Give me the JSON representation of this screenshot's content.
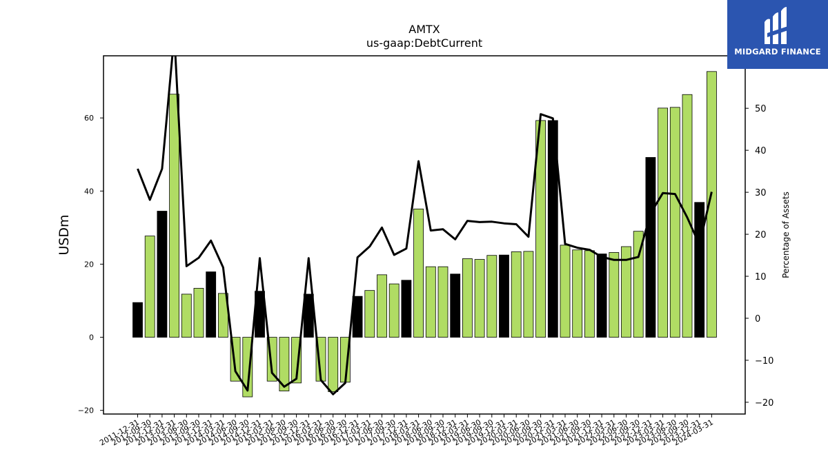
{
  "chart_data": {
    "type": "bar",
    "title": "AMTX",
    "subtitle": "us-gaap:DebtCurrent",
    "ylabel": "USDm",
    "y2label": "Percentage of Assets",
    "ylim": [
      -21,
      77
    ],
    "y2lim": [
      -22.8,
      62.5
    ],
    "yticks": [
      -20,
      0,
      20,
      40,
      60
    ],
    "y2ticks": [
      -20,
      -10,
      0,
      10,
      20,
      30,
      40,
      50
    ],
    "colors": {
      "bar_default": "#b0dc64",
      "bar_highlight": "#000000",
      "line": "#000000"
    },
    "categories": [
      "2011-12-31",
      "2012-09-30",
      "2012-12-31",
      "2013-03-31",
      "2013-06-30",
      "2013-09-30",
      "2013-12-31",
      "2014-03-31",
      "2014-06-30",
      "2014-09-30",
      "2014-12-31",
      "2015-03-31",
      "2015-06-30",
      "2015-09-30",
      "2015-12-31",
      "2016-03-31",
      "2016-06-30",
      "2016-09-30",
      "2016-12-31",
      "2017-03-31",
      "2017-06-30",
      "2017-09-30",
      "2017-12-31",
      "2018-03-31",
      "2018-06-30",
      "2018-09-30",
      "2018-12-31",
      "2019-03-31",
      "2019-06-30",
      "2019-09-30",
      "2019-12-31",
      "2020-03-31",
      "2020-06-30",
      "2020-09-30",
      "2020-12-31",
      "2021-03-31",
      "2021-06-30",
      "2021-09-30",
      "2021-12-31",
      "2022-03-31",
      "2022-06-30",
      "2022-09-30",
      "2022-12-31",
      "2023-03-31",
      "2023-06-30",
      "2023-09-30",
      "2023-12-31",
      "2024-03-31"
    ],
    "series": [
      {
        "values": [
          9.5,
          27.7,
          34.5,
          66.5,
          11.8,
          13.4,
          17.9,
          12.0,
          -12.0,
          -16.3,
          12.6,
          -12.0,
          -14.7,
          -12.5,
          11.8,
          -12.0,
          -14.9,
          -12.3,
          11.2,
          12.8,
          17.1,
          14.6,
          15.6,
          35.1,
          19.3,
          19.3,
          17.3,
          21.5,
          21.3,
          22.4,
          22.5,
          23.4,
          23.5,
          59.3,
          59.3,
          25.2,
          23.9,
          23.7,
          22.8,
          23.2,
          24.8,
          29.0,
          49.2,
          62.7,
          62.9,
          66.4,
          36.9,
          72.7
        ]
      },
      {
        "values": [
          35.6,
          28.2,
          35.6,
          67.5,
          12.4,
          14.4,
          18.5,
          12.1,
          -12.6,
          -17.2,
          14.3,
          -13.0,
          -16.3,
          -14.4,
          14.3,
          -14.7,
          -18.1,
          -15.4,
          14.5,
          17.1,
          21.6,
          15.1,
          16.6,
          37.4,
          20.9,
          21.2,
          18.8,
          23.2,
          22.9,
          23.0,
          22.6,
          22.4,
          19.4,
          48.6,
          47.6,
          17.7,
          16.8,
          16.3,
          14.6,
          13.9,
          13.9,
          14.6,
          25.0,
          29.8,
          29.6,
          24.0,
          17.5,
          30.1
        ]
      }
    ],
    "highlight": [
      true,
      false,
      true,
      false,
      false,
      false,
      true,
      false,
      false,
      false,
      true,
      false,
      false,
      false,
      true,
      false,
      false,
      false,
      true,
      false,
      false,
      false,
      true,
      false,
      false,
      false,
      true,
      false,
      false,
      false,
      true,
      false,
      false,
      false,
      true,
      false,
      false,
      false,
      true,
      false,
      false,
      false,
      true,
      false,
      false,
      false,
      true,
      false
    ]
  },
  "logo": {
    "text": "MIDGARD FINANCE"
  }
}
